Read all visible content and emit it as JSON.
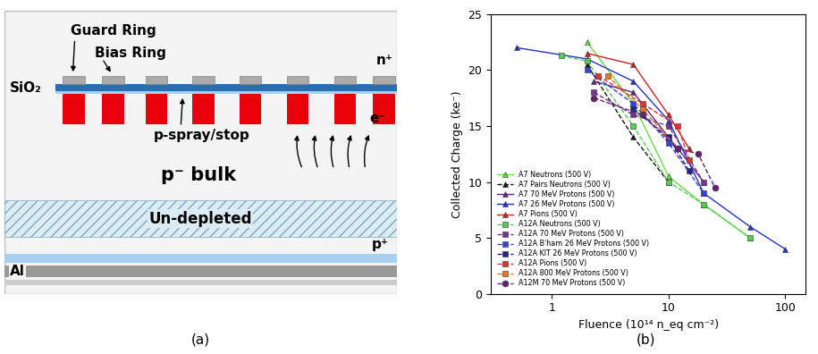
{
  "panels": [
    "(a)",
    "(b)"
  ],
  "diagram": {
    "guard_ring": "Guard Ring",
    "bias_ring": "Bias Ring",
    "oxide": "SiO₂",
    "implant": "n⁺",
    "p_spray": "p-spray/stop",
    "bulk": "p⁻ bulk",
    "electrons": "e⁻",
    "undepleted": "Un-depleted",
    "metal": "Al",
    "backside": "p⁺"
  },
  "chart_data": {
    "type": "line",
    "xlabel": "Fluence (10¹⁴ n_eq cm⁻²)",
    "ylabel": "Collected Charge (ke⁻)",
    "log": "x",
    "xlim": [
      0.3,
      150
    ],
    "xticks": [
      1,
      10,
      100
    ],
    "ylim": [
      0,
      25
    ],
    "yticks": [
      0,
      5,
      10,
      15,
      20,
      25
    ],
    "legend": "lower left",
    "series": [
      {
        "name": "A7 Neutrons (500 V)",
        "color": "#66dd44",
        "marker": "triangle",
        "line_style": "solid",
        "x": [
          2,
          5,
          10,
          20,
          50
        ],
        "values": [
          22.5,
          17,
          10.5,
          8,
          5
        ]
      },
      {
        "name": "A7 Pairs Neutrons (500 V)",
        "color": "#111111",
        "marker": "triangle",
        "line_style": "dashed",
        "x": [
          2,
          5,
          10
        ],
        "values": [
          20.5,
          14,
          10
        ]
      },
      {
        "name": "A7 70 MeV Protons (500 V)",
        "color": "#662288",
        "marker": "triangle",
        "line_style": "solid",
        "x": [
          2.3,
          5,
          10,
          12,
          20
        ],
        "values": [
          19,
          18,
          14,
          13,
          10
        ]
      },
      {
        "name": "A7 26 MeV Protons (500 V)",
        "color": "#2233cc",
        "marker": "triangle",
        "line_style": "solid",
        "x": [
          0.5,
          2,
          5,
          10,
          20,
          50,
          100
        ],
        "values": [
          22,
          21,
          19,
          15.5,
          9,
          6,
          4
        ]
      },
      {
        "name": "A7 Pions (500 V)",
        "color": "#cc2222",
        "marker": "triangle",
        "line_style": "solid",
        "x": [
          2,
          5,
          10,
          15
        ],
        "values": [
          21.5,
          20.5,
          16,
          13
        ]
      },
      {
        "name": "A12A Neutrons (500 V)",
        "color": "#55cc55",
        "marker": "square",
        "line_style": "dashed",
        "x": [
          1.2,
          2,
          5,
          10,
          20,
          50
        ],
        "values": [
          21.3,
          20.8,
          15,
          10,
          8,
          5
        ]
      },
      {
        "name": "A12A 70 MeV Protons (500 V)",
        "color": "#773399",
        "marker": "square",
        "line_style": "dashed",
        "x": [
          2.3,
          5,
          10,
          20
        ],
        "values": [
          18,
          16,
          15,
          10
        ]
      },
      {
        "name": "A12A B'ham 26 MeV Protons (500 V)",
        "color": "#3344dd",
        "marker": "square",
        "line_style": "dashed",
        "x": [
          2,
          5,
          10,
          20
        ],
        "values": [
          20,
          17,
          13.5,
          9
        ]
      },
      {
        "name": "A12A KIT 26 MeV Protons (500 V)",
        "color": "#222288",
        "marker": "square",
        "line_style": "dashed",
        "x": [
          5,
          10,
          15
        ],
        "values": [
          16.5,
          14,
          11
        ]
      },
      {
        "name": "A12A Pions (500 V)",
        "color": "#dd3333",
        "marker": "square",
        "line_style": "dashed",
        "x": [
          2.5,
          6,
          12,
          15
        ],
        "values": [
          19.5,
          17,
          15,
          12
        ]
      },
      {
        "name": "A12A 800 MeV Protons (500 V)",
        "color": "#ee7722",
        "marker": "square",
        "line_style": "dashed",
        "x": [
          3,
          6,
          12
        ],
        "values": [
          19.5,
          16.5,
          13
        ]
      },
      {
        "name": "A12M 70 MeV Protons (500 V)",
        "color": "#662277",
        "marker": "circle",
        "line_style": "dashed",
        "x": [
          2.3,
          6,
          12,
          18,
          25
        ],
        "values": [
          17.5,
          16,
          13,
          12.5,
          9.5
        ]
      }
    ]
  }
}
